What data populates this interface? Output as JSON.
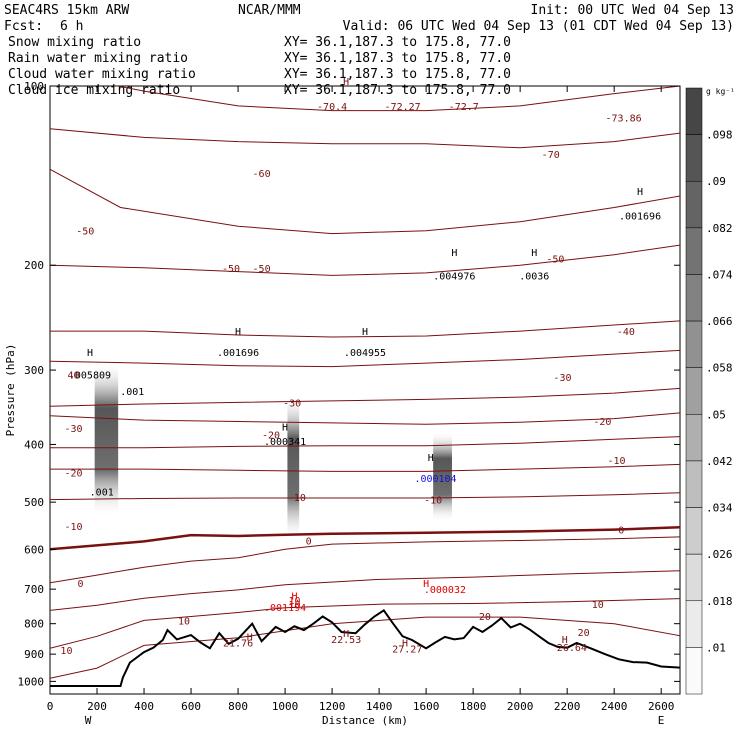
{
  "header": {
    "model": "SEAC4RS 15km ARW",
    "org": "NCAR/MMM",
    "init": "Init: 00 UTC Wed 04 Sep 13",
    "fcst_label": "Fcst:",
    "fcst_value": "6 h",
    "valid": "Valid: 06 UTC Wed 04 Sep 13 (01 CDT Wed 04 Sep 13)",
    "fields": [
      {
        "name": "Snow mixing ratio",
        "color": "#000000",
        "xy": "XY=  36.1,187.3 to 175.8, 77.0"
      },
      {
        "name": "Rain water mixing ratio",
        "color": "#e00000",
        "xy": "XY=  36.1,187.3 to 175.8, 77.0"
      },
      {
        "name": "Cloud water mixing ratio",
        "color": "#1010e0",
        "xy": "XY=  36.1,187.3 to 175.8, 77.0"
      },
      {
        "name": "Cloud ice mixing ratio",
        "color": "#000000",
        "xy": "XY=  36.1,187.3 to 175.8, 77.0"
      }
    ]
  },
  "colors": {
    "temperature_contour": "#7a1010",
    "freezing_level": "#7a1010",
    "terrain": "#000000",
    "rain": "#e00000",
    "cloud_water": "#1010e0"
  },
  "chart_data": {
    "type": "contour_cross_section",
    "xlabel": "Distance (km)",
    "ylabel": "Pressure (hPa)",
    "xlim": [
      0,
      2680
    ],
    "ylim": [
      1050,
      100
    ],
    "y_log": true,
    "x_ticks": [
      "0",
      "200",
      "400",
      "600",
      "800",
      "1000",
      "1200",
      "1400",
      "1600",
      "1800",
      "2000",
      "2200",
      "2400",
      "2600"
    ],
    "y_ticks": [
      "100",
      "200",
      "300",
      "400",
      "500",
      "600",
      "700",
      "800",
      "900",
      "1000"
    ],
    "endpoints": {
      "left": "W",
      "right": "E"
    },
    "colorbar": {
      "unit": "g kg⁻¹",
      "levels": [
        ".098",
        ".09",
        ".082",
        ".074",
        ".066",
        ".058",
        ".05",
        ".042",
        ".034",
        ".026",
        ".018",
        ".01"
      ]
    },
    "temperature_contours": [
      {
        "label": "-70",
        "values": [
          [
            0,
            95
          ],
          [
            400,
            102
          ],
          [
            800,
            108
          ],
          [
            1200,
            110
          ],
          [
            1600,
            110
          ],
          [
            2000,
            108
          ],
          [
            2400,
            103
          ],
          [
            2680,
            100
          ]
        ]
      },
      {
        "label": "-60",
        "values": [
          [
            0,
            118
          ],
          [
            400,
            122
          ],
          [
            800,
            124
          ],
          [
            1200,
            125
          ],
          [
            1600,
            125
          ],
          [
            2000,
            127
          ],
          [
            2400,
            124
          ],
          [
            2680,
            120
          ]
        ]
      },
      {
        "label": "-50",
        "values": [
          [
            0,
            138
          ],
          [
            300,
            160
          ],
          [
            800,
            172
          ],
          [
            1200,
            177
          ],
          [
            1600,
            175
          ],
          [
            2000,
            169
          ],
          [
            2400,
            160
          ],
          [
            2680,
            153
          ]
        ]
      },
      {
        "label": "-50",
        "values": [
          [
            0,
            200
          ],
          [
            400,
            202
          ],
          [
            800,
            205
          ],
          [
            1200,
            208
          ],
          [
            1600,
            206
          ],
          [
            2000,
            200
          ],
          [
            2400,
            192
          ],
          [
            2680,
            185
          ]
        ]
      },
      {
        "label": "-40",
        "values": [
          [
            0,
            258
          ],
          [
            400,
            258
          ],
          [
            800,
            262
          ],
          [
            1200,
            264
          ],
          [
            1600,
            263
          ],
          [
            2000,
            258
          ],
          [
            2400,
            252
          ],
          [
            2680,
            248
          ]
        ]
      },
      {
        "label": "-30",
        "values": [
          [
            0,
            290
          ],
          [
            400,
            292
          ],
          [
            800,
            295
          ],
          [
            1200,
            296
          ],
          [
            1600,
            292
          ],
          [
            2000,
            288
          ],
          [
            2400,
            282
          ],
          [
            2680,
            278
          ]
        ]
      },
      {
        "label": "-30",
        "values": [
          [
            0,
            345
          ],
          [
            400,
            342
          ],
          [
            800,
            340
          ],
          [
            1200,
            338
          ],
          [
            1600,
            336
          ],
          [
            2000,
            333
          ],
          [
            2400,
            328
          ],
          [
            2680,
            322
          ]
        ]
      },
      {
        "label": "-20",
        "values": [
          [
            0,
            358
          ],
          [
            400,
            364
          ],
          [
            800,
            366
          ],
          [
            1200,
            368
          ],
          [
            1600,
            370
          ],
          [
            2000,
            367
          ],
          [
            2400,
            362
          ],
          [
            2680,
            354
          ]
        ]
      },
      {
        "label": "-20",
        "values": [
          [
            0,
            405
          ],
          [
            400,
            405
          ],
          [
            800,
            403
          ],
          [
            1200,
            402
          ],
          [
            1600,
            402
          ],
          [
            2000,
            398
          ],
          [
            2400,
            392
          ],
          [
            2680,
            388
          ]
        ]
      },
      {
        "label": "-10",
        "values": [
          [
            0,
            440
          ],
          [
            400,
            440
          ],
          [
            800,
            442
          ],
          [
            1200,
            444
          ],
          [
            1600,
            444
          ],
          [
            2000,
            440
          ],
          [
            2400,
            436
          ],
          [
            2680,
            432
          ]
        ]
      },
      {
        "label": "-10",
        "values": [
          [
            0,
            495
          ],
          [
            400,
            493
          ],
          [
            800,
            492
          ],
          [
            1200,
            492
          ],
          [
            1600,
            492
          ],
          [
            2000,
            490
          ],
          [
            2400,
            486
          ],
          [
            2680,
            482
          ]
        ]
      },
      {
        "label": "0",
        "values": [
          [
            0,
            600
          ],
          [
            400,
            582
          ],
          [
            600,
            568
          ],
          [
            800,
            570
          ],
          [
            1000,
            567
          ],
          [
            1200,
            565
          ],
          [
            1600,
            563
          ],
          [
            2000,
            560
          ],
          [
            2400,
            556
          ],
          [
            2680,
            551
          ]
        ]
      },
      {
        "label": "0",
        "values": [
          [
            0,
            683
          ],
          [
            200,
            663
          ],
          [
            400,
            643
          ],
          [
            600,
            628
          ],
          [
            800,
            620
          ],
          [
            1000,
            600
          ],
          [
            1200,
            588
          ],
          [
            1600,
            583
          ],
          [
            2000,
            580
          ],
          [
            2400,
            576
          ],
          [
            2680,
            572
          ]
        ]
      },
      {
        "label": "10",
        "values": [
          [
            0,
            760
          ],
          [
            200,
            745
          ],
          [
            400,
            725
          ],
          [
            600,
            712
          ],
          [
            800,
            702
          ],
          [
            1000,
            688
          ],
          [
            1400,
            674
          ],
          [
            1800,
            668
          ],
          [
            2200,
            660
          ],
          [
            2680,
            652
          ]
        ]
      },
      {
        "label": "10",
        "values": [
          [
            0,
            880
          ],
          [
            200,
            840
          ],
          [
            400,
            790
          ],
          [
            600,
            778
          ],
          [
            800,
            766
          ],
          [
            1000,
            752
          ],
          [
            1400,
            742
          ],
          [
            1800,
            740
          ],
          [
            2200,
            735
          ],
          [
            2680,
            726
          ]
        ]
      },
      {
        "label": "20",
        "values": [
          [
            0,
            988
          ],
          [
            200,
            950
          ],
          [
            400,
            870
          ],
          [
            800,
            845
          ],
          [
            1200,
            800
          ],
          [
            1600,
            780
          ],
          [
            2000,
            780
          ],
          [
            2400,
            800
          ],
          [
            2680,
            838
          ]
        ]
      }
    ],
    "terrain": [
      [
        0,
        1018
      ],
      [
        300,
        1018
      ],
      [
        310,
        985
      ],
      [
        340,
        930
      ],
      [
        400,
        893
      ],
      [
        440,
        878
      ],
      [
        480,
        852
      ],
      [
        500,
        820
      ],
      [
        540,
        850
      ],
      [
        600,
        836
      ],
      [
        640,
        860
      ],
      [
        680,
        880
      ],
      [
        720,
        830
      ],
      [
        760,
        865
      ],
      [
        800,
        848
      ],
      [
        860,
        800
      ],
      [
        900,
        856
      ],
      [
        960,
        810
      ],
      [
        1000,
        826
      ],
      [
        1040,
        808
      ],
      [
        1080,
        820
      ],
      [
        1120,
        800
      ],
      [
        1160,
        778
      ],
      [
        1200,
        796
      ],
      [
        1240,
        826
      ],
      [
        1300,
        830
      ],
      [
        1340,
        802
      ],
      [
        1380,
        778
      ],
      [
        1420,
        760
      ],
      [
        1460,
        800
      ],
      [
        1500,
        840
      ],
      [
        1540,
        852
      ],
      [
        1600,
        880
      ],
      [
        1640,
        860
      ],
      [
        1680,
        842
      ],
      [
        1720,
        850
      ],
      [
        1760,
        846
      ],
      [
        1800,
        810
      ],
      [
        1840,
        826
      ],
      [
        1880,
        806
      ],
      [
        1920,
        783
      ],
      [
        1960,
        812
      ],
      [
        2000,
        800
      ],
      [
        2040,
        818
      ],
      [
        2080,
        840
      ],
      [
        2120,
        862
      ],
      [
        2160,
        875
      ],
      [
        2200,
        878
      ],
      [
        2240,
        862
      ],
      [
        2300,
        880
      ],
      [
        2360,
        900
      ],
      [
        2420,
        918
      ],
      [
        2480,
        928
      ],
      [
        2540,
        930
      ],
      [
        2600,
        944
      ],
      [
        2680,
        948
      ]
    ],
    "hydrometeor_columns": [
      {
        "x": [
          190,
          290
        ],
        "p_top": 290,
        "p_bottom": 530,
        "peak": ".005809"
      },
      {
        "x": [
          1010,
          1060
        ],
        "p_top": 330,
        "p_bottom": 580,
        "peak": ".000341"
      },
      {
        "x": [
          1630,
          1710
        ],
        "p_top": 380,
        "p_bottom": 540,
        "peak": ".000104"
      }
    ],
    "maxima_labels": [
      {
        "text": "H",
        "x": 1260,
        "p": 98,
        "kind": "temp"
      },
      {
        "text": "-70.4",
        "x": 1200,
        "p": 108,
        "kind": "temp"
      },
      {
        "text": "-72.27",
        "x": 1500,
        "p": 108,
        "kind": "temp"
      },
      {
        "text": "-72.7",
        "x": 1760,
        "p": 108,
        "kind": "temp"
      },
      {
        "text": "-73.86",
        "x": 2440,
        "p": 113,
        "kind": "temp"
      },
      {
        "text": "H",
        "x": 2510,
        "p": 150,
        "kind": "snow"
      },
      {
        "text": ".001696",
        "x": 2510,
        "p": 165,
        "kind": "snow"
      },
      {
        "text": "H",
        "x": 1720,
        "p": 190,
        "kind": "snow"
      },
      {
        "text": ".004976",
        "x": 1720,
        "p": 208,
        "kind": "snow"
      },
      {
        "text": "H",
        "x": 2060,
        "p": 190,
        "kind": "snow"
      },
      {
        "text": ".0036",
        "x": 2060,
        "p": 208,
        "kind": "snow"
      },
      {
        "text": "H",
        "x": 800,
        "p": 258,
        "kind": "snow"
      },
      {
        "text": ".001696",
        "x": 800,
        "p": 280,
        "kind": "snow"
      },
      {
        "text": "H",
        "x": 1340,
        "p": 258,
        "kind": "snow"
      },
      {
        "text": ".004955",
        "x": 1340,
        "p": 280,
        "kind": "snow"
      },
      {
        "text": "H",
        "x": 170,
        "p": 280,
        "kind": "snow"
      },
      {
        "text": ".005809",
        "x": 170,
        "p": 305,
        "kind": "snow"
      },
      {
        "text": "40",
        "x": 100,
        "p": 305,
        "kind": "temp"
      },
      {
        "text": ".001",
        "x": 350,
        "p": 325,
        "kind": "snow"
      },
      {
        "text": "H",
        "x": 1000,
        "p": 373,
        "kind": "snow"
      },
      {
        "text": ".000341",
        "x": 1000,
        "p": 395,
        "kind": "snow"
      },
      {
        "text": "-20",
        "x": 940,
        "p": 385,
        "kind": "temp"
      },
      {
        "text": "H",
        "x": 1620,
        "p": 420,
        "kind": "snow"
      },
      {
        "text": ".000104",
        "x": 1640,
        "p": 455,
        "kind": "cloud"
      },
      {
        "text": ".001",
        "x": 220,
        "p": 480,
        "kind": "snow"
      },
      {
        "text": "H",
        "x": 1040,
        "p": 718,
        "kind": "rain"
      },
      {
        "text": "10",
        "x": 1040,
        "p": 730,
        "kind": "rain"
      },
      {
        "text": ".001194",
        "x": 1000,
        "p": 750,
        "kind": "rain"
      },
      {
        "text": "H",
        "x": 1600,
        "p": 683,
        "kind": "rain"
      },
      {
        "text": ".000032",
        "x": 1680,
        "p": 700,
        "kind": "rain"
      },
      {
        "text": "H",
        "x": 850,
        "p": 840,
        "kind": "temp"
      },
      {
        "text": "21.76",
        "x": 800,
        "p": 860,
        "kind": "temp"
      },
      {
        "text": "H",
        "x": 1260,
        "p": 830,
        "kind": "temp"
      },
      {
        "text": "22.53",
        "x": 1260,
        "p": 848,
        "kind": "temp"
      },
      {
        "text": "H",
        "x": 1510,
        "p": 860,
        "kind": "temp"
      },
      {
        "text": "27.27",
        "x": 1520,
        "p": 880,
        "kind": "temp"
      },
      {
        "text": "H",
        "x": 2190,
        "p": 848,
        "kind": "temp"
      },
      {
        "text": "26.64",
        "x": 2220,
        "p": 875,
        "kind": "temp"
      }
    ],
    "contour_labels": [
      {
        "text": "-50",
        "x": 150,
        "p": 175
      },
      {
        "text": "-60",
        "x": 900,
        "p": 140
      },
      {
        "text": "-50",
        "x": 770,
        "p": 202
      },
      {
        "text": "-50",
        "x": 900,
        "p": 202
      },
      {
        "text": "-70",
        "x": 2130,
        "p": 130
      },
      {
        "text": "-50",
        "x": 2150,
        "p": 195
      },
      {
        "text": "-40",
        "x": 2450,
        "p": 258
      },
      {
        "text": "-30",
        "x": 1030,
        "p": 340
      },
      {
        "text": "-30",
        "x": 2180,
        "p": 308
      },
      {
        "text": "-30",
        "x": 100,
        "p": 375
      },
      {
        "text": "-20",
        "x": 2350,
        "p": 365
      },
      {
        "text": "-20",
        "x": 100,
        "p": 446
      },
      {
        "text": "-10",
        "x": 2410,
        "p": 425
      },
      {
        "text": "-10",
        "x": 1050,
        "p": 490
      },
      {
        "text": "-10",
        "x": 1630,
        "p": 495
      },
      {
        "text": "-10",
        "x": 100,
        "p": 548
      },
      {
        "text": "0",
        "x": 1100,
        "p": 580
      },
      {
        "text": "0",
        "x": 2430,
        "p": 556
      },
      {
        "text": "0",
        "x": 130,
        "p": 683
      },
      {
        "text": "10",
        "x": 1040,
        "p": 742
      },
      {
        "text": "10",
        "x": 570,
        "p": 790
      },
      {
        "text": "10",
        "x": 2330,
        "p": 742
      },
      {
        "text": "20",
        "x": 1850,
        "p": 777
      },
      {
        "text": "20",
        "x": 2270,
        "p": 826
      },
      {
        "text": "10",
        "x": 70,
        "p": 885
      }
    ]
  }
}
